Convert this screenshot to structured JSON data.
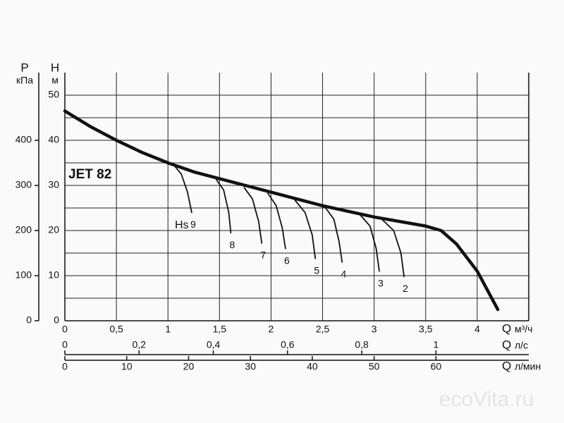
{
  "chart_data": {
    "type": "line",
    "title": "JET 82",
    "y_label": "H",
    "y_unit": "м",
    "y2_label": "P",
    "y2_unit": "кПа",
    "ylim": [
      0,
      55
    ],
    "yticks": [
      0,
      10,
      20,
      30,
      40,
      50
    ],
    "minor_yticks": [
      5,
      15,
      25,
      35,
      45
    ],
    "y2lim": [
      0,
      550
    ],
    "y2ticks": [
      0,
      100,
      200,
      300,
      400
    ],
    "xlim": [
      0,
      4.5
    ],
    "x_label": "Q",
    "x_unit": "м³/ч",
    "xticks": [
      0,
      {
        "value": 0.5,
        "label": "0,5"
      },
      1,
      {
        "value": 1.5,
        "label": "1,5"
      },
      2,
      {
        "value": 2.5,
        "label": "2,5"
      },
      3,
      {
        "value": 3.5,
        "label": "3,5"
      },
      4
    ],
    "x2_label": "Q",
    "x2_unit": "л/с",
    "x2lim": [
      0,
      1.25
    ],
    "x2ticks": [
      0,
      {
        "value": 0.2,
        "label": "0,2"
      },
      {
        "value": 0.4,
        "label": "0,4"
      },
      {
        "value": 0.6,
        "label": "0,6"
      },
      {
        "value": 0.8,
        "label": "0,8"
      },
      1
    ],
    "x3_label": "Q",
    "x3_unit": "л/мин",
    "x3lim": [
      0,
      75
    ],
    "x3ticks": [
      0,
      10,
      20,
      30,
      40,
      50,
      60
    ],
    "grid": true,
    "annotation": "Hs",
    "watermark": "ecoVita.ru",
    "series": [
      {
        "color": "#111111",
        "x": [
          0,
          0.25,
          0.5,
          0.75,
          1,
          1.25,
          1.5,
          1.75,
          2,
          2.5,
          3,
          3.5,
          3.65,
          3.8,
          4,
          4.2
        ],
        "values": [
          46.5,
          43,
          40,
          37.3,
          35,
          33,
          31.5,
          30,
          28.5,
          25.5,
          23,
          21,
          20,
          17,
          11,
          2.5
        ]
      },
      {
        "name": "9",
        "color": "#111111",
        "x": [
          1.05,
          1.13,
          1.19,
          1.23
        ],
        "values": [
          34.7,
          32.5,
          28.5,
          24
        ]
      },
      {
        "name": "8",
        "color": "#111111",
        "x": [
          1.47,
          1.54,
          1.59,
          1.61
        ],
        "values": [
          31.3,
          29,
          24,
          19.5
        ]
      },
      {
        "name": "7",
        "color": "#111111",
        "x": [
          1.74,
          1.82,
          1.88,
          1.91
        ],
        "values": [
          29.5,
          27,
          22,
          17.2
        ]
      },
      {
        "name": "6",
        "color": "#111111",
        "x": [
          1.97,
          2.05,
          2.11,
          2.14
        ],
        "values": [
          28.2,
          25.5,
          20.5,
          16
        ]
      },
      {
        "name": "5",
        "color": "#111111",
        "x": [
          2.23,
          2.33,
          2.4,
          2.43
        ],
        "values": [
          26.8,
          24,
          19,
          13.8
        ]
      },
      {
        "name": "4",
        "color": "#111111",
        "x": [
          2.52,
          2.61,
          2.66,
          2.69
        ],
        "values": [
          25.3,
          22.5,
          17.5,
          13
        ]
      },
      {
        "name": "3",
        "color": "#111111",
        "x": [
          2.86,
          2.96,
          3.02,
          3.05
        ],
        "values": [
          23.6,
          21,
          16,
          11
        ]
      },
      {
        "name": "2",
        "color": "#111111",
        "x": [
          3.07,
          3.19,
          3.26,
          3.29
        ],
        "values": [
          22.6,
          20,
          15,
          9.8
        ]
      }
    ]
  }
}
